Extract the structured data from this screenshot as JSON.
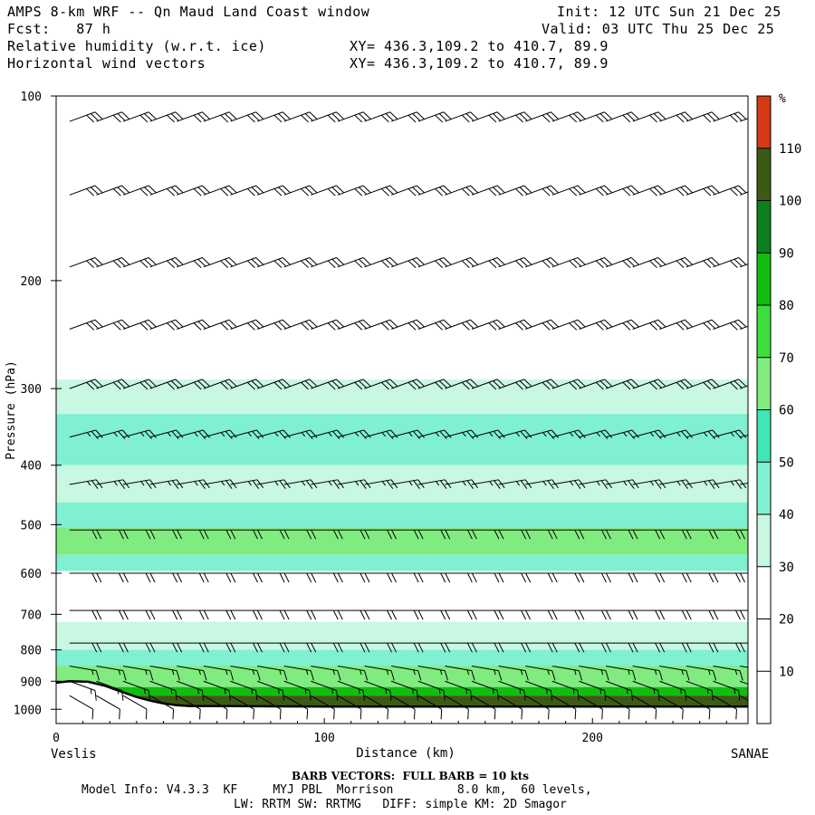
{
  "header": {
    "model": "AMPS 8-km WRF -- Qn Maud Land Coast window",
    "init": "Init: 12 UTC Sun 21 Dec 25",
    "fcst": "Fcst:   87 h",
    "valid": "Valid: 03 UTC Thu 25 Dec 25",
    "field1": "Relative humidity (w.r.t. ice)",
    "xy1": "XY= 436.3,109.2 to 410.7, 89.9",
    "field2": "Horizontal wind vectors",
    "xy2": "XY= 436.3,109.2 to 410.7, 89.9"
  },
  "footer": {
    "barb_note": "BARB VECTORS:  FULL BARB = 10 kts",
    "model_info_1": "Model Info: V4.3.3  KF     MYJ PBL  Morrison         8.0 km,  60 levels,",
    "model_info_2": "LW: RRTM SW: RRTMG   DIFF: simple KM: 2D Smagor"
  },
  "chart_data": {
    "type": "heatmap",
    "title": "Relative humidity (w.r.t. ice)",
    "xlabel": "Distance (km)",
    "ylabel": "Pressure (hPa)",
    "xlim": [
      0,
      258
    ],
    "ylim": [
      100,
      1055
    ],
    "y_scale": "log",
    "x_ticks": [
      0,
      100,
      200
    ],
    "y_ticks": [
      100,
      200,
      300,
      400,
      500,
      600,
      700,
      800,
      900,
      1000
    ],
    "x_endpoints": {
      "left": "Veslis",
      "right": "SANAE"
    },
    "colorbar": {
      "unit": "%",
      "ticks": [
        10,
        20,
        30,
        40,
        50,
        60,
        70,
        80,
        90,
        100,
        110
      ],
      "levels": [
        0,
        10,
        20,
        30,
        40,
        50,
        60,
        70,
        80,
        90,
        100,
        110,
        120
      ],
      "colors": [
        "#ffffff",
        "#ffffff",
        "#ffffff",
        "#c8f7e2",
        "#7ff0d2",
        "#40e6b4",
        "#80ec80",
        "#3fde3f",
        "#12bd12",
        "#0d7f1f",
        "#3d5a14",
        "#d43a14"
      ]
    },
    "rh_bands": [
      {
        "p_top": 100,
        "p_bot": 290,
        "rh": 5
      },
      {
        "p_top": 290,
        "p_bot": 330,
        "rh": 35
      },
      {
        "p_top": 330,
        "p_bot": 400,
        "rh": 45
      },
      {
        "p_top": 400,
        "p_bot": 460,
        "rh": 32
      },
      {
        "p_top": 460,
        "p_bot": 505,
        "rh": 45
      },
      {
        "p_top": 505,
        "p_bot": 560,
        "rh": 65
      },
      {
        "p_top": 560,
        "p_bot": 595,
        "rh": 45
      },
      {
        "p_top": 595,
        "p_bot": 720,
        "rh": 22
      },
      {
        "p_top": 720,
        "p_bot": 800,
        "rh": 32
      },
      {
        "p_top": 800,
        "p_bot": 850,
        "rh": 45
      },
      {
        "p_top": 850,
        "p_bot": 920,
        "rh": 65
      },
      {
        "p_top": 920,
        "p_bot": 950,
        "rh": 85
      },
      {
        "p_top": 950,
        "p_bot": 990,
        "rh": 105
      }
    ],
    "terrain": {
      "x": [
        0,
        5,
        12,
        18,
        24,
        30,
        35,
        40,
        45,
        50,
        60,
        80,
        100,
        120,
        150,
        200,
        258
      ],
      "p": [
        905,
        900,
        902,
        915,
        935,
        955,
        968,
        978,
        985,
        988,
        988,
        989,
        990,
        990,
        990,
        990,
        990
      ]
    },
    "wind": {
      "x": [
        5,
        15,
        25,
        35,
        45,
        55,
        65,
        75,
        85,
        95,
        105,
        115,
        125,
        135,
        145,
        155,
        165,
        175,
        185,
        195,
        205,
        215,
        225,
        235,
        245,
        255
      ],
      "p": [
        110,
        145,
        190,
        240,
        300,
        360,
        430,
        510,
        600,
        690,
        780,
        850,
        900,
        950
      ],
      "speed_kts": [
        30,
        30,
        30,
        30,
        30,
        25,
        25,
        20,
        20,
        20,
        20,
        15,
        15,
        10
      ],
      "direction_deg": [
        70,
        70,
        70,
        70,
        70,
        75,
        80,
        90,
        90,
        90,
        90,
        100,
        110,
        120
      ]
    }
  }
}
